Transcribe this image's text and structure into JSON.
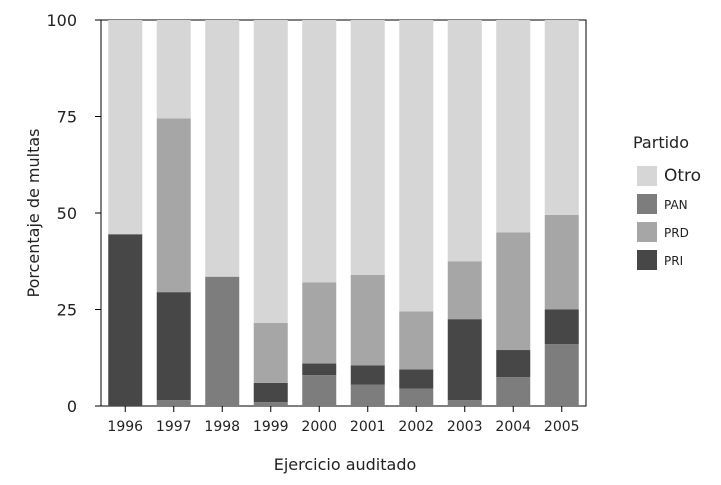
{
  "chart_data": {
    "type": "bar",
    "stacked": true,
    "categories": [
      "1996",
      "1997",
      "1998",
      "1999",
      "2000",
      "2001",
      "2002",
      "2003",
      "2004",
      "2005"
    ],
    "series": [
      {
        "name": "PRI",
        "color": "#474747",
        "values": [
          44.5,
          28,
          0,
          5,
          3,
          5,
          5,
          21,
          7,
          9
        ]
      },
      {
        "name": "PAN",
        "color": "#7d7d7d",
        "values": [
          0,
          1.5,
          33.5,
          1,
          8,
          5.5,
          4.5,
          1.5,
          7.5,
          16
        ]
      },
      {
        "name": "PRD",
        "color": "#a6a6a6",
        "values": [
          0,
          45,
          0,
          15.5,
          21,
          23.5,
          15,
          15,
          30.5,
          24.5
        ]
      },
      {
        "name": "Otro",
        "color": "#d6d6d6",
        "values": [
          55.5,
          25.5,
          66.5,
          78.5,
          68,
          66,
          75.5,
          62.5,
          55,
          50.5
        ]
      }
    ],
    "stack_order": [
      "PAN",
      "PRI",
      "PRD",
      "Otro"
    ],
    "legend_order": [
      "Otro",
      "PAN",
      "PRD",
      "PRI"
    ],
    "xlabel": "Ejercicio auditado",
    "ylabel": "Porcentaje de multas",
    "yticks": [
      "0",
      "25",
      "50",
      "75",
      "100"
    ],
    "ylim": [
      0,
      100
    ],
    "legend": {
      "title": "Partido",
      "position": "right"
    }
  }
}
